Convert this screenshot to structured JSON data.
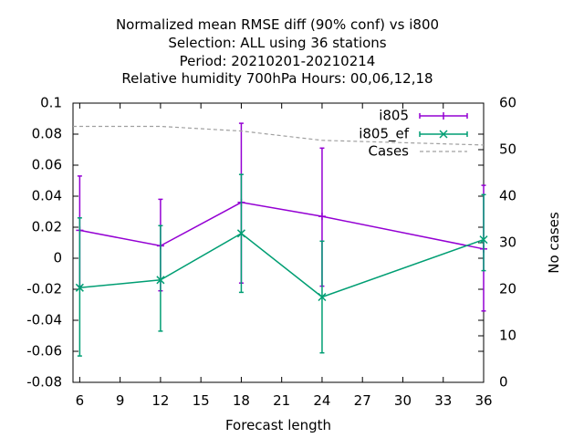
{
  "chart_data": {
    "type": "line",
    "title_lines": [
      "Normalized mean RMSE diff (90% conf) vs i800",
      "Selection: ALL using    36 stations",
      "Period: 20210201-20210214",
      "Relative humidity 700hPa   Hours:  00,06,12,18"
    ],
    "xlabel": "Forecast length",
    "ylabel": "",
    "y2label": "No cases",
    "xlim": [
      5.5,
      36
    ],
    "ylim": [
      -0.08,
      0.1
    ],
    "y2lim": [
      0,
      60
    ],
    "x_ticks": [
      "6",
      "9",
      "12",
      "15",
      "18",
      "21",
      "24",
      "27",
      "30",
      "33",
      "36"
    ],
    "y_ticks": [
      "0.1",
      "0.08",
      "0.06",
      "0.04",
      "0.02",
      "0",
      "-0.02",
      "-0.04",
      "-0.06",
      "-0.08"
    ],
    "y2_ticks": [
      "60",
      "50",
      "40",
      "30",
      "20",
      "10",
      "0"
    ],
    "grid": false,
    "legend_position": "top-right",
    "series": [
      {
        "name": "i805",
        "color": "#9400d3",
        "marker": "plus",
        "axis": "y1",
        "x": [
          6,
          12,
          18,
          24,
          36
        ],
        "y": [
          0.018,
          0.008,
          0.036,
          0.027,
          0.006
        ],
        "err_low": [
          -0.018,
          -0.021,
          -0.016,
          -0.018,
          -0.034
        ],
        "err_high": [
          0.053,
          0.038,
          0.087,
          0.071,
          0.047
        ]
      },
      {
        "name": "i805_ef",
        "color": "#009e73",
        "marker": "cross",
        "axis": "y1",
        "x": [
          6,
          12,
          18,
          24,
          36
        ],
        "y": [
          -0.019,
          -0.014,
          0.016,
          -0.025,
          0.012
        ],
        "err_low": [
          -0.063,
          -0.047,
          -0.022,
          -0.061,
          -0.008
        ],
        "err_high": [
          0.026,
          0.021,
          0.054,
          0.011,
          0.041
        ]
      },
      {
        "name": "Cases",
        "color": "#a0a0a0",
        "style": "dashed",
        "axis": "y2",
        "x": [
          5.5,
          12,
          18,
          24,
          36
        ],
        "y": [
          55,
          55,
          54,
          52,
          51
        ]
      }
    ]
  }
}
